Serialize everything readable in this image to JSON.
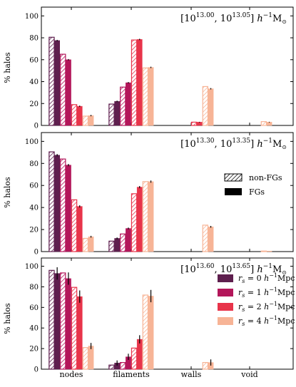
{
  "chart_data": {
    "type": "bar",
    "categories": [
      "nodes",
      "filaments",
      "walls",
      "void"
    ],
    "ylabel": "% halos",
    "ylim": [
      0,
      108
    ],
    "yticks": [
      "0",
      "20",
      "40",
      "60",
      "80",
      "100"
    ],
    "series_names": [
      "r_s = 0 h^{-1}Mpc",
      "r_s = 1 h^{-1}Mpc",
      "r_s = 2 h^{-1}Mpc",
      "r_s = 4 h^{-1}Mpc"
    ],
    "colors": [
      "#5e1f4e",
      "#b3165a",
      "#e8344a",
      "#f7b496"
    ],
    "legend_type": {
      "non_fg": "non-FGs",
      "fg": "FGs"
    },
    "legend_rs": [
      {
        "prefix": "r",
        "sub": "s",
        "mid": " = 0 ",
        "h": "h",
        "sup": "−1",
        "unit": "Mpc"
      },
      {
        "prefix": "r",
        "sub": "s",
        "mid": " = 1 ",
        "h": "h",
        "sup": "−1",
        "unit": "Mpc"
      },
      {
        "prefix": "r",
        "sub": "s",
        "mid": " = 2 ",
        "h": "h",
        "sup": "−1",
        "unit": "Mpc"
      },
      {
        "prefix": "r",
        "sub": "s",
        "mid": " = 4 ",
        "h": "h",
        "sup": "−1",
        "unit": "Mpc"
      }
    ],
    "panels": [
      {
        "mass_lo": "13.00",
        "mass_hi": "13.05",
        "values": [
          {
            "category": "nodes",
            "nonfg": [
              80.5,
              65.0,
              19.0,
              8.5
            ],
            "fg": [
              77.5,
              60.0,
              17.5,
              9.0
            ],
            "fg_err": [
              0.6,
              0.6,
              0.6,
              0.6
            ]
          },
          {
            "category": "filaments",
            "nonfg": [
              19.5,
              35.0,
              78.0,
              52.5
            ],
            "fg": [
              22.0,
              39.0,
              78.5,
              53.0
            ],
            "fg_err": [
              0.6,
              0.6,
              0.6,
              0.6
            ]
          },
          {
            "category": "walls",
            "nonfg": [
              0,
              0,
              3.0,
              35.5
            ],
            "fg": [
              0,
              0,
              3.0,
              33.5
            ],
            "fg_err": [
              0,
              0,
              0.3,
              0.6
            ]
          },
          {
            "category": "void",
            "nonfg": [
              0,
              0,
              0,
              3.5
            ],
            "fg": [
              0,
              0,
              0,
              3.0
            ],
            "fg_err": [
              0,
              0,
              0,
              0.3
            ]
          }
        ]
      },
      {
        "mass_lo": "13.30",
        "mass_hi": "13.35",
        "values": [
          {
            "category": "nodes",
            "nonfg": [
              90.5,
              84.0,
              47.0,
              12.0
            ],
            "fg": [
              87.5,
              78.5,
              41.0,
              13.5
            ],
            "fg_err": [
              1.0,
              1.0,
              1.0,
              0.8
            ]
          },
          {
            "category": "filaments",
            "nonfg": [
              9.5,
              16.0,
              52.5,
              63.5
            ],
            "fg": [
              12.0,
              21.0,
              58.5,
              63.5
            ],
            "fg_err": [
              0.8,
              0.8,
              1.0,
              1.0
            ]
          },
          {
            "category": "walls",
            "nonfg": [
              0,
              0,
              0,
              24.0
            ],
            "fg": [
              0,
              0,
              0,
              22.5
            ],
            "fg_err": [
              0,
              0,
              0,
              0.8
            ]
          },
          {
            "category": "void",
            "nonfg": [
              0,
              0,
              0,
              0.5
            ],
            "fg": [
              0,
              0,
              0,
              0.5
            ],
            "fg_err": [
              0,
              0,
              0,
              0
            ]
          }
        ]
      },
      {
        "mass_lo": "13.60",
        "mass_hi": "13.65",
        "values": [
          {
            "category": "nodes",
            "nonfg": [
              96.0,
              93.5,
              79.5,
              21.0
            ],
            "fg": [
              93.0,
              88.0,
              70.5,
              22.5
            ],
            "fg_err": [
              6.0,
              6.0,
              6.0,
              3.0
            ]
          },
          {
            "category": "filaments",
            "nonfg": [
              4.0,
              6.5,
              20.5,
              72.0
            ],
            "fg": [
              6.0,
              12.0,
              29.0,
              71.0
            ],
            "fg_err": [
              2.5,
              3.0,
              4.0,
              6.0
            ]
          },
          {
            "category": "walls",
            "nonfg": [
              0,
              0,
              0,
              6.5
            ],
            "fg": [
              0,
              0,
              0,
              6.5
            ],
            "fg_err": [
              0,
              0,
              0,
              3.0
            ]
          },
          {
            "category": "void",
            "nonfg": [
              0,
              0,
              0,
              0
            ],
            "fg": [
              0,
              0,
              0,
              0
            ],
            "fg_err": [
              0,
              0,
              0,
              0
            ]
          }
        ]
      }
    ]
  }
}
